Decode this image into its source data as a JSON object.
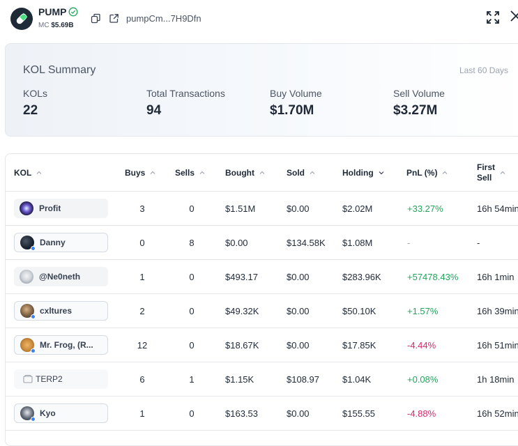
{
  "token": {
    "name": "PUMP",
    "mc_label": "MC",
    "mc_value": "$5.69B",
    "address": "pumpCm...7H9Dfn"
  },
  "summary": {
    "title": "KOL Summary",
    "period": "Last 60 Days",
    "stats": [
      {
        "label": "KOLs",
        "value": "22"
      },
      {
        "label": "Total Transactions",
        "value": "94"
      },
      {
        "label": "Buy Volume",
        "value": "$1.70M"
      },
      {
        "label": "Sell Volume",
        "value": "$3.27M"
      }
    ]
  },
  "table": {
    "columns": {
      "kol": "KOL",
      "buys": "Buys",
      "sells": "Sells",
      "bought": "Bought",
      "sold": "Sold",
      "holding": "Holding",
      "pnl": "PnL (%)",
      "first_sell_1": "First",
      "first_sell_2": "Sell"
    },
    "rows": [
      {
        "name": "Profit",
        "buys": "3",
        "sells": "0",
        "bought": "$1.51M",
        "sold": "$0.00",
        "holding": "$2.02M",
        "pnl": "+33.27%",
        "first_sell": "16h 54min"
      },
      {
        "name": "Danny",
        "buys": "0",
        "sells": "8",
        "bought": "$0.00",
        "sold": "$134.58K",
        "holding": "$1.08M",
        "pnl": "-",
        "first_sell": "-"
      },
      {
        "name": "@Ne0neth",
        "buys": "1",
        "sells": "0",
        "bought": "$493.17",
        "sold": "$0.00",
        "holding": "$283.96K",
        "pnl": "+57478.43%",
        "first_sell": "16h 1min"
      },
      {
        "name": "cxltures",
        "buys": "2",
        "sells": "0",
        "bought": "$49.32K",
        "sold": "$0.00",
        "holding": "$50.10K",
        "pnl": "+1.57%",
        "first_sell": "16h 39min"
      },
      {
        "name": "Mr. Frog, (R...",
        "buys": "12",
        "sells": "0",
        "bought": "$18.67K",
        "sold": "$0.00",
        "holding": "$17.85K",
        "pnl": "-4.44%",
        "first_sell": "16h 51min"
      },
      {
        "name": "TERP2",
        "buys": "6",
        "sells": "1",
        "bought": "$1.15K",
        "sold": "$108.97",
        "holding": "$1.04K",
        "pnl": "+0.08%",
        "first_sell": "1h 18min"
      },
      {
        "name": "Kyo",
        "buys": "1",
        "sells": "0",
        "bought": "$163.53",
        "sold": "$0.00",
        "holding": "$155.55",
        "pnl": "-4.88%",
        "first_sell": "16h 52min"
      }
    ]
  },
  "colors": {
    "positive": "#22a55b",
    "negative": "#dc2668",
    "online": "#3b82f6"
  }
}
